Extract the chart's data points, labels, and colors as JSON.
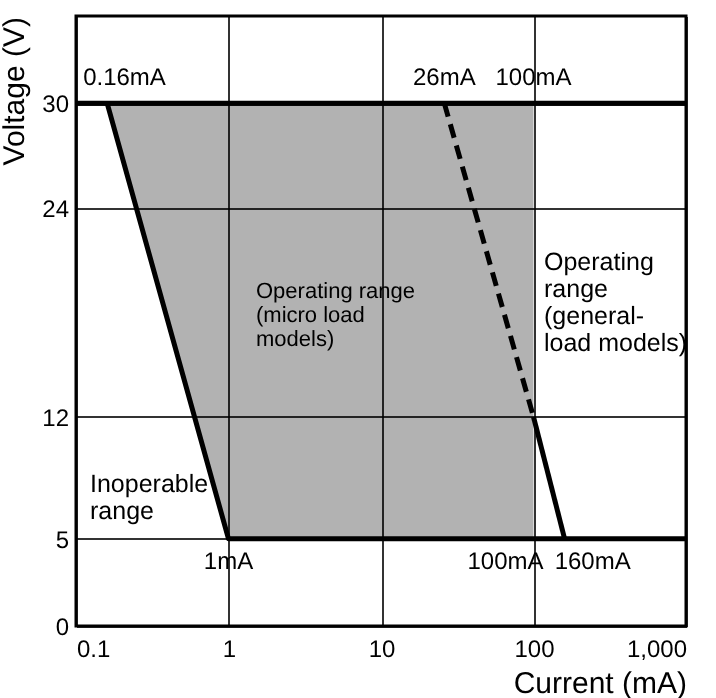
{
  "chart_data": {
    "type": "line",
    "xlabel": "Current (mA)",
    "ylabel": "Voltage (V)",
    "log": "x",
    "grid": true,
    "marker": "none",
    "xlim": [
      0.1,
      1000
    ],
    "ylim": [
      0,
      35
    ],
    "xticks": [
      0.1,
      1,
      10,
      100,
      {
        "value": 1000,
        "label": "1,000"
      }
    ],
    "yticks": [
      0,
      5,
      12,
      24,
      30
    ],
    "series": [
      {
        "color": "#000000",
        "line_style": "solid",
        "x": [
          0.16,
          1,
          100,
          1000
        ],
        "values": [
          30,
          5,
          5,
          5
        ],
        "lower": [
          30,
          5,
          5,
          null
        ],
        "upper": [
          30,
          30,
          30,
          null
        ]
      },
      {
        "color": "#000000",
        "line_style": "dashed",
        "x": [
          26,
          100
        ],
        "values": [
          30,
          12
        ]
      },
      {
        "color": "#000000",
        "line_style": "solid",
        "x": [
          100,
          160
        ],
        "values": [
          12,
          5
        ]
      }
    ],
    "ref_lines": [
      {
        "axis": "y",
        "value": 30,
        "color": "#000000",
        "line_style": "solid"
      }
    ],
    "annotations": [
      {
        "text": "0.16mA",
        "x": 0.16,
        "y": 30
      },
      {
        "text": "26mA",
        "x": 26,
        "y": 30
      },
      {
        "text": "100mA",
        "x": 100,
        "y": 30
      },
      {
        "text": "1mA",
        "x": 1,
        "y": 5
      },
      {
        "text": "100mA",
        "x": 100,
        "y": 5
      },
      {
        "text": "160mA",
        "x": 160,
        "y": 5
      },
      "Operating range\n(micro load\nmodels)",
      "Operating\nrange\n(general-\nload models)",
      "Inoperable\nrange"
    ]
  }
}
